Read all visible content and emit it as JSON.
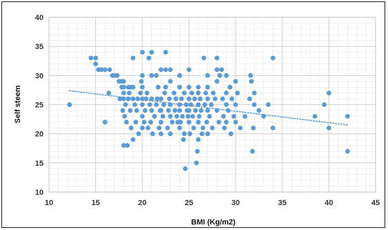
{
  "chart_data": {
    "type": "scatter",
    "title": "",
    "xlabel": "BMI (Kg/m2)",
    "ylabel": "Self steem",
    "xlim": [
      10,
      45
    ],
    "ylim": [
      10,
      40
    ],
    "xticks": [
      10,
      15,
      20,
      25,
      30,
      35,
      40,
      45
    ],
    "yticks": [
      10,
      15,
      20,
      25,
      30,
      35,
      40
    ],
    "grid": true,
    "grid_minor": true,
    "legend": false,
    "marker_color": "#5b9bd5",
    "trendline": {
      "type": "linear",
      "style": "dotted",
      "color": "#5b9bd5",
      "x": [
        12.2,
        42
      ],
      "y": [
        27.4,
        21.5
      ]
    },
    "points": [
      [
        12.2,
        25
      ],
      [
        14.5,
        33
      ],
      [
        15,
        33
      ],
      [
        15,
        32
      ],
      [
        15.3,
        31
      ],
      [
        15.6,
        31
      ],
      [
        16,
        31
      ],
      [
        16,
        22
      ],
      [
        16.4,
        27
      ],
      [
        16.5,
        31
      ],
      [
        16.8,
        30
      ],
      [
        17,
        30
      ],
      [
        17.3,
        30
      ],
      [
        17.5,
        29
      ],
      [
        17.6,
        26
      ],
      [
        17.8,
        28
      ],
      [
        17.8,
        29
      ],
      [
        17.9,
        24
      ],
      [
        18,
        18
      ],
      [
        18,
        26
      ],
      [
        18,
        27
      ],
      [
        18,
        28
      ],
      [
        18,
        29
      ],
      [
        18.1,
        23
      ],
      [
        18.2,
        25
      ],
      [
        18.3,
        22
      ],
      [
        18.4,
        18
      ],
      [
        18.5,
        28
      ],
      [
        18.5,
        26
      ],
      [
        18.6,
        27
      ],
      [
        18.7,
        24
      ],
      [
        18.8,
        21
      ],
      [
        18.8,
        28
      ],
      [
        19,
        26
      ],
      [
        19,
        28
      ],
      [
        19,
        33
      ],
      [
        19,
        19
      ],
      [
        19.2,
        25
      ],
      [
        19.3,
        22
      ],
      [
        19.4,
        24
      ],
      [
        19.5,
        26
      ],
      [
        19.6,
        20
      ],
      [
        19.8,
        27
      ],
      [
        19.9,
        29
      ],
      [
        20,
        23
      ],
      [
        20,
        21
      ],
      [
        20,
        25
      ],
      [
        20,
        26
      ],
      [
        20,
        28
      ],
      [
        20,
        30
      ],
      [
        20,
        34
      ],
      [
        20.2,
        22
      ],
      [
        20.3,
        24
      ],
      [
        20.4,
        26
      ],
      [
        20.5,
        27
      ],
      [
        20.6,
        21
      ],
      [
        20.7,
        33
      ],
      [
        20.8,
        25
      ],
      [
        20.9,
        22
      ],
      [
        21,
        24
      ],
      [
        21,
        26
      ],
      [
        21,
        30
      ],
      [
        21,
        34
      ],
      [
        21.1,
        20
      ],
      [
        21.3,
        23
      ],
      [
        21.5,
        25
      ],
      [
        21.5,
        30
      ],
      [
        21.6,
        26
      ],
      [
        21.7,
        28
      ],
      [
        21.8,
        21
      ],
      [
        21.9,
        24
      ],
      [
        22,
        20
      ],
      [
        22,
        22
      ],
      [
        22,
        24
      ],
      [
        22,
        31
      ],
      [
        22,
        26
      ],
      [
        22.2,
        23
      ],
      [
        22.3,
        25
      ],
      [
        22.4,
        27
      ],
      [
        22.5,
        28
      ],
      [
        22.5,
        31
      ],
      [
        22.5,
        34
      ],
      [
        22.7,
        21
      ],
      [
        22.8,
        24
      ],
      [
        22.9,
        26
      ],
      [
        23,
        20
      ],
      [
        23,
        23
      ],
      [
        23,
        29
      ],
      [
        23,
        31
      ],
      [
        23,
        25
      ],
      [
        23.2,
        22
      ],
      [
        23.4,
        27
      ],
      [
        23.5,
        24
      ],
      [
        23.6,
        26
      ],
      [
        23.7,
        23
      ],
      [
        23.8,
        22
      ],
      [
        24,
        21
      ],
      [
        24,
        24
      ],
      [
        24,
        25
      ],
      [
        24,
        28
      ],
      [
        24,
        30
      ],
      [
        24.1,
        22
      ],
      [
        24.2,
        26
      ],
      [
        24.3,
        23
      ],
      [
        24.4,
        19
      ],
      [
        24.5,
        20
      ],
      [
        24.5,
        27
      ],
      [
        24.6,
        14
      ],
      [
        24.7,
        25
      ],
      [
        24.8,
        24
      ],
      [
        24.9,
        23
      ],
      [
        25,
        22
      ],
      [
        25,
        26
      ],
      [
        25,
        28
      ],
      [
        25,
        31
      ],
      [
        25,
        24
      ],
      [
        25.1,
        20
      ],
      [
        25.2,
        25
      ],
      [
        25.3,
        27
      ],
      [
        25.4,
        23
      ],
      [
        25.5,
        21
      ],
      [
        25.6,
        26
      ],
      [
        25.7,
        24
      ],
      [
        25.8,
        15
      ],
      [
        25.9,
        17
      ],
      [
        26,
        19
      ],
      [
        26,
        22
      ],
      [
        26,
        25
      ],
      [
        26,
        27
      ],
      [
        26,
        28
      ],
      [
        26.1,
        23
      ],
      [
        26.2,
        26
      ],
      [
        26.3,
        24
      ],
      [
        26.4,
        20
      ],
      [
        26.5,
        21
      ],
      [
        26.6,
        33
      ],
      [
        26.7,
        25
      ],
      [
        26.8,
        27
      ],
      [
        26.9,
        22
      ],
      [
        27,
        20
      ],
      [
        27,
        24
      ],
      [
        27,
        26
      ],
      [
        27,
        28
      ],
      [
        27,
        30
      ],
      [
        27.2,
        23
      ],
      [
        27.4,
        25
      ],
      [
        27.5,
        21
      ],
      [
        27.6,
        27
      ],
      [
        27.8,
        26
      ],
      [
        28,
        31
      ],
      [
        28,
        33
      ],
      [
        28,
        29
      ],
      [
        28,
        24
      ],
      [
        28.2,
        22
      ],
      [
        28.3,
        30
      ],
      [
        28.5,
        31
      ],
      [
        28.6,
        26
      ],
      [
        28.7,
        23
      ],
      [
        28.8,
        21
      ],
      [
        29,
        25
      ],
      [
        29,
        27
      ],
      [
        29,
        30
      ],
      [
        29,
        22
      ],
      [
        29.2,
        24
      ],
      [
        29.4,
        28
      ],
      [
        29.5,
        20
      ],
      [
        29.6,
        26
      ],
      [
        29.8,
        23
      ],
      [
        30,
        22
      ],
      [
        30,
        25
      ],
      [
        30,
        29
      ],
      [
        30.2,
        27
      ],
      [
        30.5,
        21
      ],
      [
        31,
        23
      ],
      [
        31.5,
        26
      ],
      [
        31.6,
        30
      ],
      [
        31.7,
        29
      ],
      [
        31.8,
        17
      ],
      [
        31.9,
        21
      ],
      [
        32,
        25
      ],
      [
        32,
        27
      ],
      [
        32.5,
        24
      ],
      [
        33,
        23
      ],
      [
        33.5,
        25
      ],
      [
        34,
        21
      ],
      [
        34,
        33
      ],
      [
        38.5,
        23
      ],
      [
        39.5,
        25
      ],
      [
        40,
        21
      ],
      [
        40,
        27
      ],
      [
        42,
        23
      ],
      [
        42,
        17
      ]
    ]
  }
}
